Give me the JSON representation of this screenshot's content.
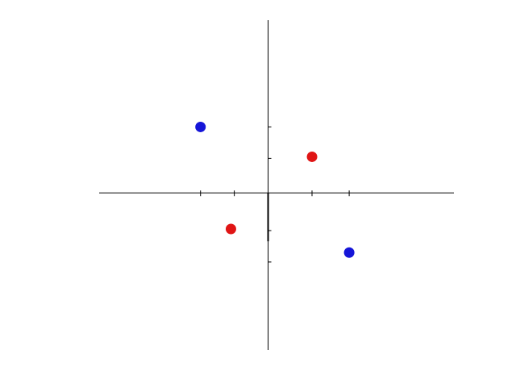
{
  "chart_data": {
    "type": "scatter",
    "title": "",
    "xlabel": "",
    "ylabel": "",
    "grid": false,
    "legend": "none",
    "xlim": [
      -5,
      5.5
    ],
    "ylim": [
      -5,
      5.5
    ],
    "x_ticks": [
      -2,
      -1,
      1.3,
      2.4
    ],
    "y_ticks": [
      2.1,
      1.1,
      -1.2,
      -2.2
    ],
    "series": [
      {
        "color": "#e01515",
        "points": [
          {
            "x": 1.3,
            "y": 1.15
          },
          {
            "x": -1.1,
            "y": -1.15
          }
        ]
      },
      {
        "color": "#1515d8",
        "points": [
          {
            "x": -2.0,
            "y": 2.1
          },
          {
            "x": 2.4,
            "y": -1.9
          }
        ]
      }
    ]
  }
}
